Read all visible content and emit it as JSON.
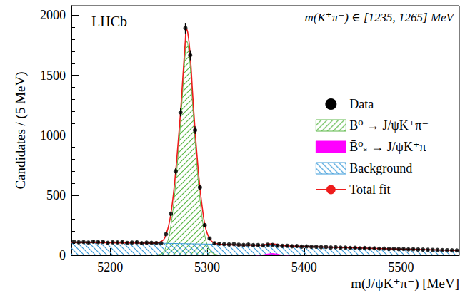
{
  "chart_data": {
    "type": "scatter",
    "annotations": [
      "LHCb",
      "m(K⁺π⁻) ∈ [1235, 1265] MeV"
    ],
    "x_label": "m(J/ψK⁺π⁻) [MeV]",
    "y_label": "Candidates / (5 MeV)",
    "xlim": [
      5160,
      5560
    ],
    "xticks": [
      5200,
      5300,
      5400,
      5500
    ],
    "ylim": [
      0,
      2080
    ],
    "yticks": [
      0,
      500,
      1000,
      1500,
      2000
    ],
    "grid": false,
    "legend": "right",
    "series": [
      {
        "name": "Data",
        "type": "scatter",
        "color": "#000000",
        "marker": "circle",
        "x": [
          5162.5,
          5167.5,
          5172.5,
          5177.5,
          5182.5,
          5187.5,
          5192.5,
          5197.5,
          5202.5,
          5207.5,
          5212.5,
          5217.5,
          5222.5,
          5227.5,
          5232.5,
          5237.5,
          5242.5,
          5247.5,
          5252.5,
          5257.5,
          5262.5,
          5267.5,
          5272.5,
          5277.5,
          5282.5,
          5287.5,
          5292.5,
          5297.5,
          5302.5,
          5307.5,
          5312.5,
          5317.5,
          5322.5,
          5327.5,
          5332.5,
          5337.5,
          5342.5,
          5347.5,
          5352.5,
          5357.5,
          5362.5,
          5367.5,
          5372.5,
          5377.5,
          5382.5,
          5387.5,
          5392.5,
          5397.5,
          5402.5,
          5407.5,
          5412.5,
          5417.5,
          5422.5,
          5427.5,
          5432.5,
          5437.5,
          5442.5,
          5447.5,
          5452.5,
          5457.5,
          5462.5,
          5467.5,
          5472.5,
          5477.5,
          5482.5,
          5487.5,
          5492.5,
          5497.5,
          5502.5,
          5507.5,
          5512.5,
          5517.5,
          5522.5,
          5527.5,
          5532.5,
          5537.5,
          5542.5,
          5547.5,
          5552.5,
          5557.5
        ],
        "values": [
          112,
          108,
          110,
          106,
          113,
          109,
          111,
          104,
          108,
          107,
          110,
          103,
          106,
          108,
          101,
          105,
          104,
          102,
          100,
          175,
          345,
          700,
          1190,
          1893,
          1667,
          1042,
          565,
          250,
          140,
          100,
          95,
          92,
          90,
          93,
          88,
          86,
          89,
          84,
          85,
          82,
          88,
          86,
          80,
          78,
          79,
          75,
          77,
          72,
          74,
          70,
          71,
          68,
          69,
          65,
          67,
          63,
          64,
          61,
          62,
          58,
          60,
          57,
          58,
          55,
          56,
          53,
          54,
          51,
          52,
          49,
          50,
          48,
          47,
          46,
          45,
          44,
          43,
          42,
          41,
          40
        ],
        "errors": [
          11,
          10,
          10,
          10,
          11,
          10,
          11,
          10,
          10,
          10,
          10,
          10,
          10,
          10,
          10,
          10,
          10,
          10,
          10,
          13,
          19,
          26,
          34,
          44,
          41,
          32,
          24,
          16,
          12,
          10,
          10,
          10,
          9,
          10,
          9,
          9,
          9,
          9,
          9,
          9,
          9,
          9,
          9,
          9,
          9,
          9,
          9,
          8,
          9,
          8,
          8,
          8,
          8,
          8,
          8,
          8,
          8,
          8,
          8,
          8,
          8,
          8,
          8,
          7,
          7,
          7,
          7,
          7,
          7,
          7,
          7,
          7,
          7,
          7,
          7,
          7,
          7,
          6,
          6,
          6
        ]
      },
      {
        "name": "B⁰ → J/ψK⁺π⁻",
        "type": "area",
        "color": "#5cb848",
        "line_style": "hatched",
        "x": [
          5245,
          5250,
          5255,
          5257.5,
          5260,
          5262.5,
          5265,
          5267.5,
          5270,
          5272.5,
          5275,
          5277.5,
          5278.5,
          5280,
          5282.5,
          5285,
          5287.5,
          5290,
          5292.5,
          5295,
          5297.5,
          5300,
          5302.5,
          5305,
          5310,
          5315
        ],
        "values": [
          0,
          5,
          30,
          75,
          140,
          245,
          400,
          600,
          840,
          1095,
          1400,
          1700,
          1790,
          1760,
          1574,
          1250,
          950,
          690,
          470,
          300,
          165,
          90,
          48,
          22,
          5,
          0
        ]
      },
      {
        "name": "B̄⁰ₛ → J/ψK⁺π⁻",
        "type": "area",
        "color": "#ff00ff",
        "line_style": "solid",
        "x": [
          5350,
          5357,
          5362,
          5367,
          5372,
          5377,
          5385
        ],
        "values": [
          0,
          3,
          10,
          14,
          10,
          3,
          0
        ]
      },
      {
        "name": "Background",
        "type": "area",
        "color": "#3a9ad9",
        "line_style": "hatched",
        "x": [
          5160,
          5200,
          5250,
          5300,
          5350,
          5400,
          5450,
          5500,
          5560
        ],
        "values": [
          108,
          105,
          100,
          93,
          84,
          73,
          62,
          51,
          40
        ]
      },
      {
        "name": "Total fit",
        "type": "line",
        "color": "#ee1c1c",
        "line_style": "solid",
        "x": [
          5160,
          5200,
          5245,
          5250,
          5255,
          5257.5,
          5260,
          5262.5,
          5265,
          5267.5,
          5270,
          5272.5,
          5275,
          5277.5,
          5278.5,
          5280,
          5282.5,
          5285,
          5287.5,
          5290,
          5292.5,
          5295,
          5297.5,
          5300,
          5302.5,
          5305,
          5310,
          5315,
          5350,
          5357,
          5362,
          5367,
          5372,
          5377,
          5385,
          5400,
          5450,
          5500,
          5560
        ],
        "values": [
          108,
          105,
          100,
          105,
          129,
          174,
          238,
          343,
          497,
          697,
          936,
          1191,
          1495,
          1795,
          1885,
          1855,
          1668,
          1344,
          1044,
          784,
          563,
          393,
          258,
          183,
          141,
          114,
          96,
          90,
          84,
          85,
          92,
          95,
          90,
          82,
          77,
          73,
          62,
          51,
          40
        ]
      }
    ]
  }
}
